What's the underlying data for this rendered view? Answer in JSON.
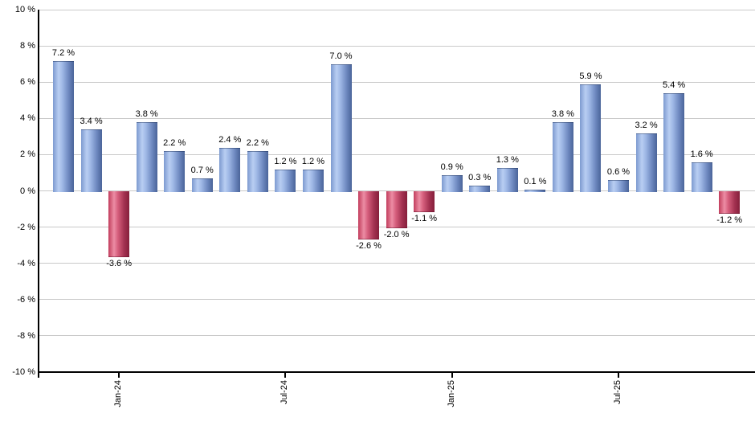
{
  "chart_data": {
    "type": "bar",
    "title": "",
    "ylabel": "",
    "xlabel": "",
    "unit": "%",
    "grid": true,
    "legend": null,
    "values": [
      7.2,
      3.4,
      -3.6,
      3.8,
      2.2,
      0.7,
      2.4,
      2.2,
      1.2,
      1.2,
      7.0,
      -2.6,
      -2.0,
      -1.1,
      0.9,
      0.3,
      1.3,
      0.1,
      3.8,
      5.9,
      0.6,
      3.2,
      5.4,
      1.6,
      -1.2
    ],
    "value_labels": [
      "7.2 %",
      "3.4 %",
      "-3.6 %",
      "3.8 %",
      "2.2 %",
      "0.7 %",
      "2.4 %",
      "2.2 %",
      "1.2 %",
      "1.2 %",
      "7.0 %",
      "-2.6 %",
      "-2.0 %",
      "-1.1 %",
      "0.9 %",
      "0.3 %",
      "1.3 %",
      "0.1 %",
      "3.8 %",
      "5.9 %",
      "0.6 %",
      "3.2 %",
      "5.4 %",
      "1.6 %",
      "-1.2 %"
    ],
    "x_ticks": [
      {
        "bar_index": 2,
        "label": "Jan-24"
      },
      {
        "bar_index": 8,
        "label": "Jul-24"
      },
      {
        "bar_index": 14,
        "label": "Jan-25"
      },
      {
        "bar_index": 20,
        "label": "Jul-25"
      }
    ],
    "y_axis": {
      "min": -10,
      "max": 10,
      "step": 2,
      "tick_labels": [
        "10 %",
        "8 %",
        "6 %",
        "4 %",
        "2 %",
        "0 %",
        "-2 %",
        "-4 %",
        "-6 %",
        "-8 %",
        "-10 %"
      ]
    },
    "colors": {
      "positive_bar_stops": [
        "#7d9ad0",
        "#b9cef2",
        "#9fb8e6",
        "#6d88bf",
        "#4a6499"
      ],
      "negative_bar_stops": [
        "#c23d5d",
        "#ec8da4",
        "#d65f7d",
        "#a43251",
        "#851f3b"
      ],
      "gridline": "#c9c9c9",
      "axis": "#000000",
      "text": "#000000",
      "background": "#ffffff"
    }
  }
}
